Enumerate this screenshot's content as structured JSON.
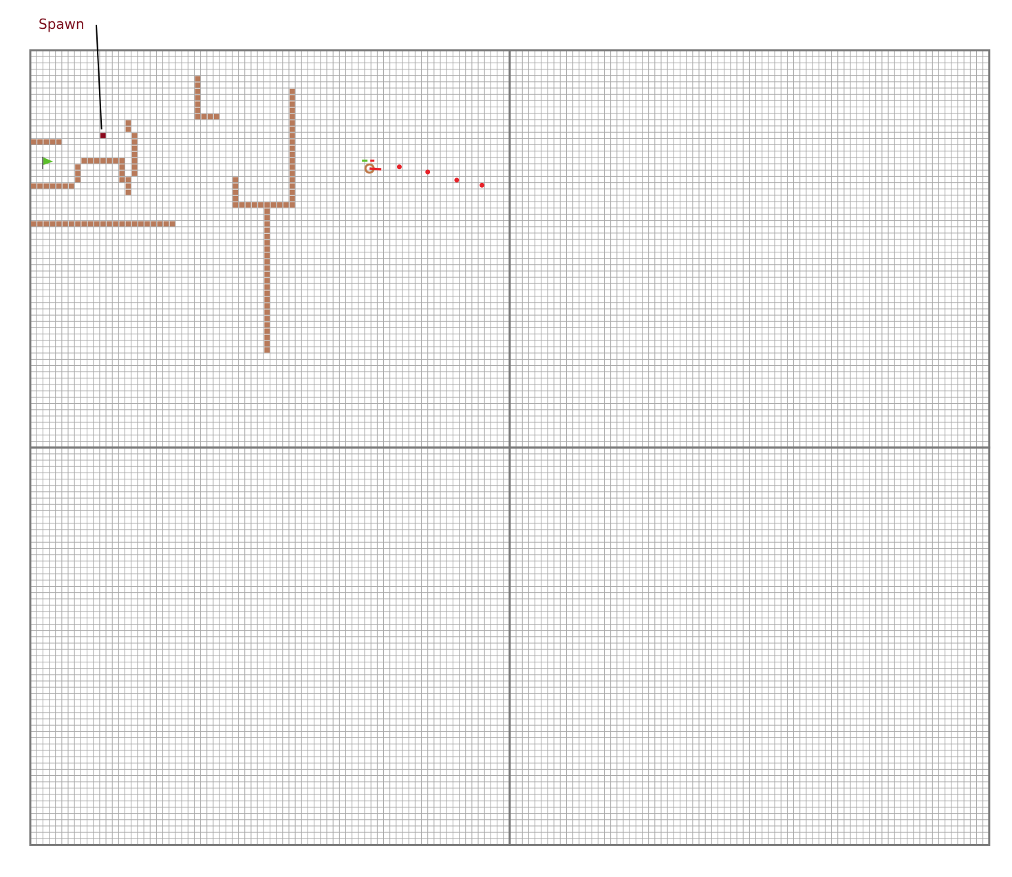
{
  "annotation": {
    "label": "Spawn"
  },
  "colors": {
    "background": "#ffffff",
    "grid_line": "#a8a8a8",
    "quadrant_border": "#7a7a7a",
    "wall": "#b87a5a",
    "spawn": "#8b0a1e",
    "label": "#7a0c1a",
    "pointer": "#000000",
    "trail": "#e8232a",
    "flag": "#5cbf2a",
    "flag_pole": "#3a3a3a"
  },
  "icons": {
    "spawn_marker": "square-marker",
    "goal": "green-flag",
    "player": "ring-with-arrow",
    "trail": "red-dot"
  },
  "grid": {
    "cell_columns_per_quadrant": 76,
    "cell_rows_per_quadrant": 63,
    "quadrants": [
      "top-left",
      "top-right",
      "bottom-left",
      "bottom-right"
    ]
  },
  "walls": [
    {
      "col": 26,
      "row": 4,
      "dir": "v",
      "len": 7
    },
    {
      "col": 27,
      "row": 10,
      "dir": "h",
      "len": 3
    },
    {
      "col": 41,
      "row": 6,
      "dir": "v",
      "len": 19
    },
    {
      "col": 32,
      "row": 20,
      "dir": "v",
      "len": 5
    },
    {
      "col": 33,
      "row": 24,
      "dir": "h",
      "len": 8
    },
    {
      "col": 37,
      "row": 25,
      "dir": "v",
      "len": 23
    },
    {
      "col": 0,
      "row": 14,
      "dir": "h",
      "len": 5
    },
    {
      "col": 0,
      "row": 21,
      "dir": "h",
      "len": 7
    },
    {
      "col": 7,
      "row": 18,
      "dir": "v",
      "len": 3
    },
    {
      "col": 8,
      "row": 17,
      "dir": "h",
      "len": 6
    },
    {
      "col": 14,
      "row": 17,
      "dir": "v",
      "len": 4
    },
    {
      "col": 15,
      "row": 20,
      "dir": "v",
      "len": 3
    },
    {
      "col": 15,
      "row": 11,
      "dir": "v",
      "len": 2
    },
    {
      "col": 16,
      "row": 13,
      "dir": "v",
      "len": 7
    },
    {
      "col": 0,
      "row": 27,
      "dir": "h",
      "len": 23
    }
  ],
  "spawn": {
    "col": 11,
    "row": 13
  },
  "goal": {
    "col": 1,
    "row": 17
  },
  "player": {
    "col": 54,
    "row": 18
  },
  "trail": [
    {
      "col": 58.5,
      "row": 18.5
    },
    {
      "col": 63,
      "row": 19.3
    },
    {
      "col": 67.6,
      "row": 20.6
    },
    {
      "col": 71.6,
      "row": 21.4
    }
  ]
}
